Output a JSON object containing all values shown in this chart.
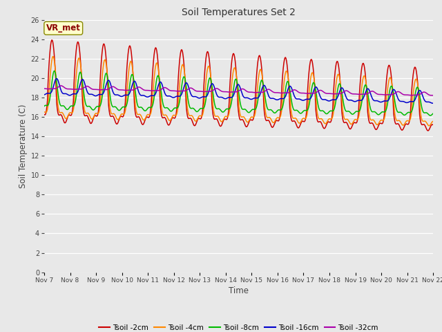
{
  "title": "Soil Temperatures Set 2",
  "xlabel": "Time",
  "ylabel": "Soil Temperature (C)",
  "annotation": "VR_met",
  "ylim": [
    0,
    26
  ],
  "yticks": [
    0,
    2,
    4,
    6,
    8,
    10,
    12,
    14,
    16,
    18,
    20,
    22,
    24,
    26
  ],
  "x_labels": [
    "Nov 7",
    "Nov 8",
    "Nov 9",
    "Nov 10",
    "Nov 11",
    "Nov 12",
    "Nov 13",
    "Nov 14",
    "Nov 15",
    "Nov 16",
    "Nov 17",
    "Nov 18",
    "Nov 19",
    "Nov 20",
    "Nov 21",
    "Nov 22"
  ],
  "bg_color": "#e8e8e8",
  "grid_color": "#ffffff",
  "legend_colors": {
    "Tsoil -2cm": "#cc0000",
    "Tsoil -4cm": "#ff8800",
    "Tsoil -8cm": "#00bb00",
    "Tsoil -16cm": "#0000cc",
    "Tsoil -32cm": "#aa00aa"
  },
  "n_days": 15,
  "n_pts_per_day": 48
}
